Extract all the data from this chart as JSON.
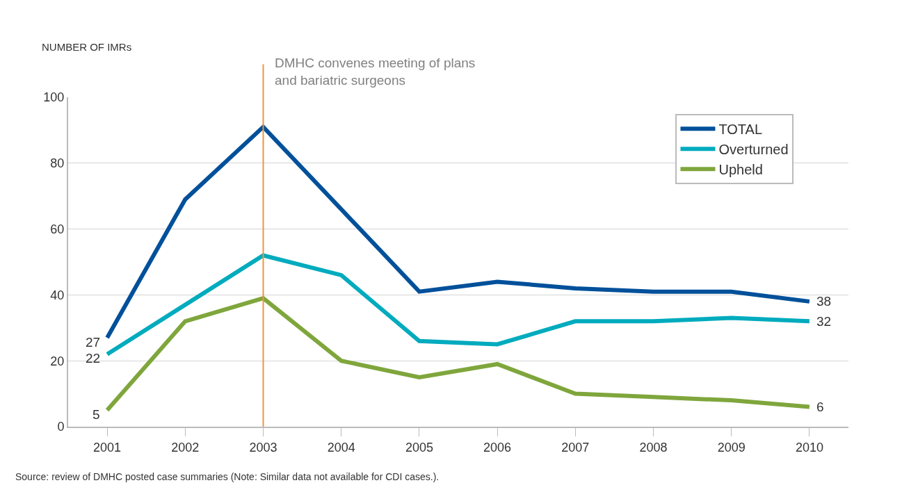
{
  "chart_data": {
    "type": "line",
    "ylabel": "NUMBER OF IMRs",
    "categories": [
      "2001",
      "2002",
      "2003",
      "2004",
      "2005",
      "2006",
      "2007",
      "2008",
      "2009",
      "2010"
    ],
    "series": [
      {
        "name": "TOTAL",
        "color": "#00509a",
        "values": [
          27,
          69,
          91,
          66,
          41,
          44,
          42,
          41,
          41,
          38
        ],
        "value_labels": [
          "27",
          null,
          null,
          null,
          null,
          null,
          null,
          null,
          null,
          "38"
        ]
      },
      {
        "name": "Overturned",
        "color": "#00abbe",
        "values": [
          22,
          37,
          52,
          46,
          26,
          25,
          32,
          32,
          33,
          32
        ],
        "value_labels": [
          "22",
          null,
          null,
          null,
          null,
          null,
          null,
          null,
          null,
          "32"
        ]
      },
      {
        "name": "Upheld",
        "color": "#7fa63c",
        "values": [
          5,
          32,
          39,
          20,
          15,
          19,
          10,
          9,
          8,
          6
        ],
        "value_labels": [
          "5",
          null,
          null,
          null,
          null,
          null,
          null,
          null,
          null,
          "6"
        ]
      }
    ],
    "ylim": [
      0,
      100
    ],
    "yticks": [
      0,
      20,
      40,
      60,
      80,
      100
    ],
    "grid": "y",
    "legend": "top right",
    "marker": "none",
    "line_style": "solid",
    "ref_lines": [
      {
        "axis": "x",
        "value": "2003",
        "label": "DMHC convenes meeting of plans\nand bariatric surgeons",
        "color": "#f3943a"
      }
    ],
    "annotations": [
      "Source: review of DMHC posted case summaries (Note: Similar data not available for CDI cases.)."
    ]
  }
}
